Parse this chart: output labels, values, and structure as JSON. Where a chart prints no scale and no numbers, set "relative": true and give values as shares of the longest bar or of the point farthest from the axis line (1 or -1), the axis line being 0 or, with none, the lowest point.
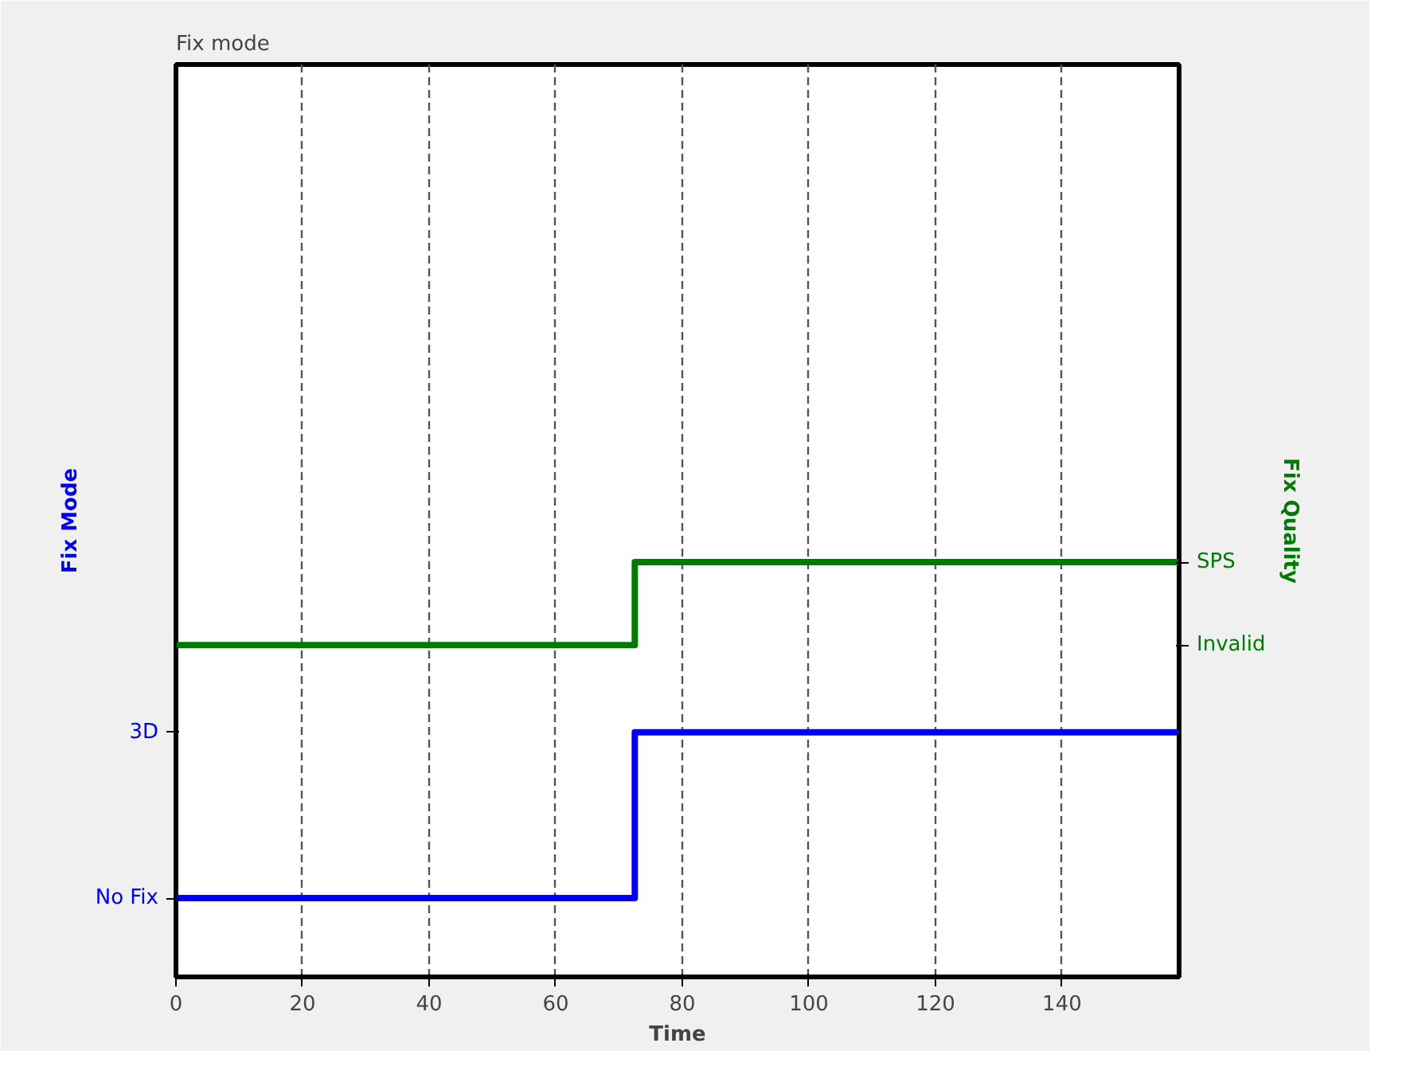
{
  "chart_data": {
    "type": "step",
    "title": "Fix mode",
    "xlabel": "Time",
    "ylabel": "Fix Mode",
    "y2label": "Fix Quality",
    "xlim": [
      0,
      158.5
    ],
    "xticks": [
      0,
      20,
      40,
      60,
      80,
      100,
      120,
      140
    ],
    "relative": true,
    "annotations": [
      "No Fix",
      "3D",
      "Invalid",
      "SPS"
    ],
    "grid": "x",
    "series": [
      {
        "color": "#0000ee",
        "x": [
          0,
          72.5,
          158.5
        ],
        "values": [
          0.19,
          0.59,
          0.59
        ]
      },
      {
        "color": "#007a00",
        "x": [
          0,
          72.5,
          158.5
        ],
        "values": [
          0.8,
          1,
          1
        ]
      }
    ]
  }
}
